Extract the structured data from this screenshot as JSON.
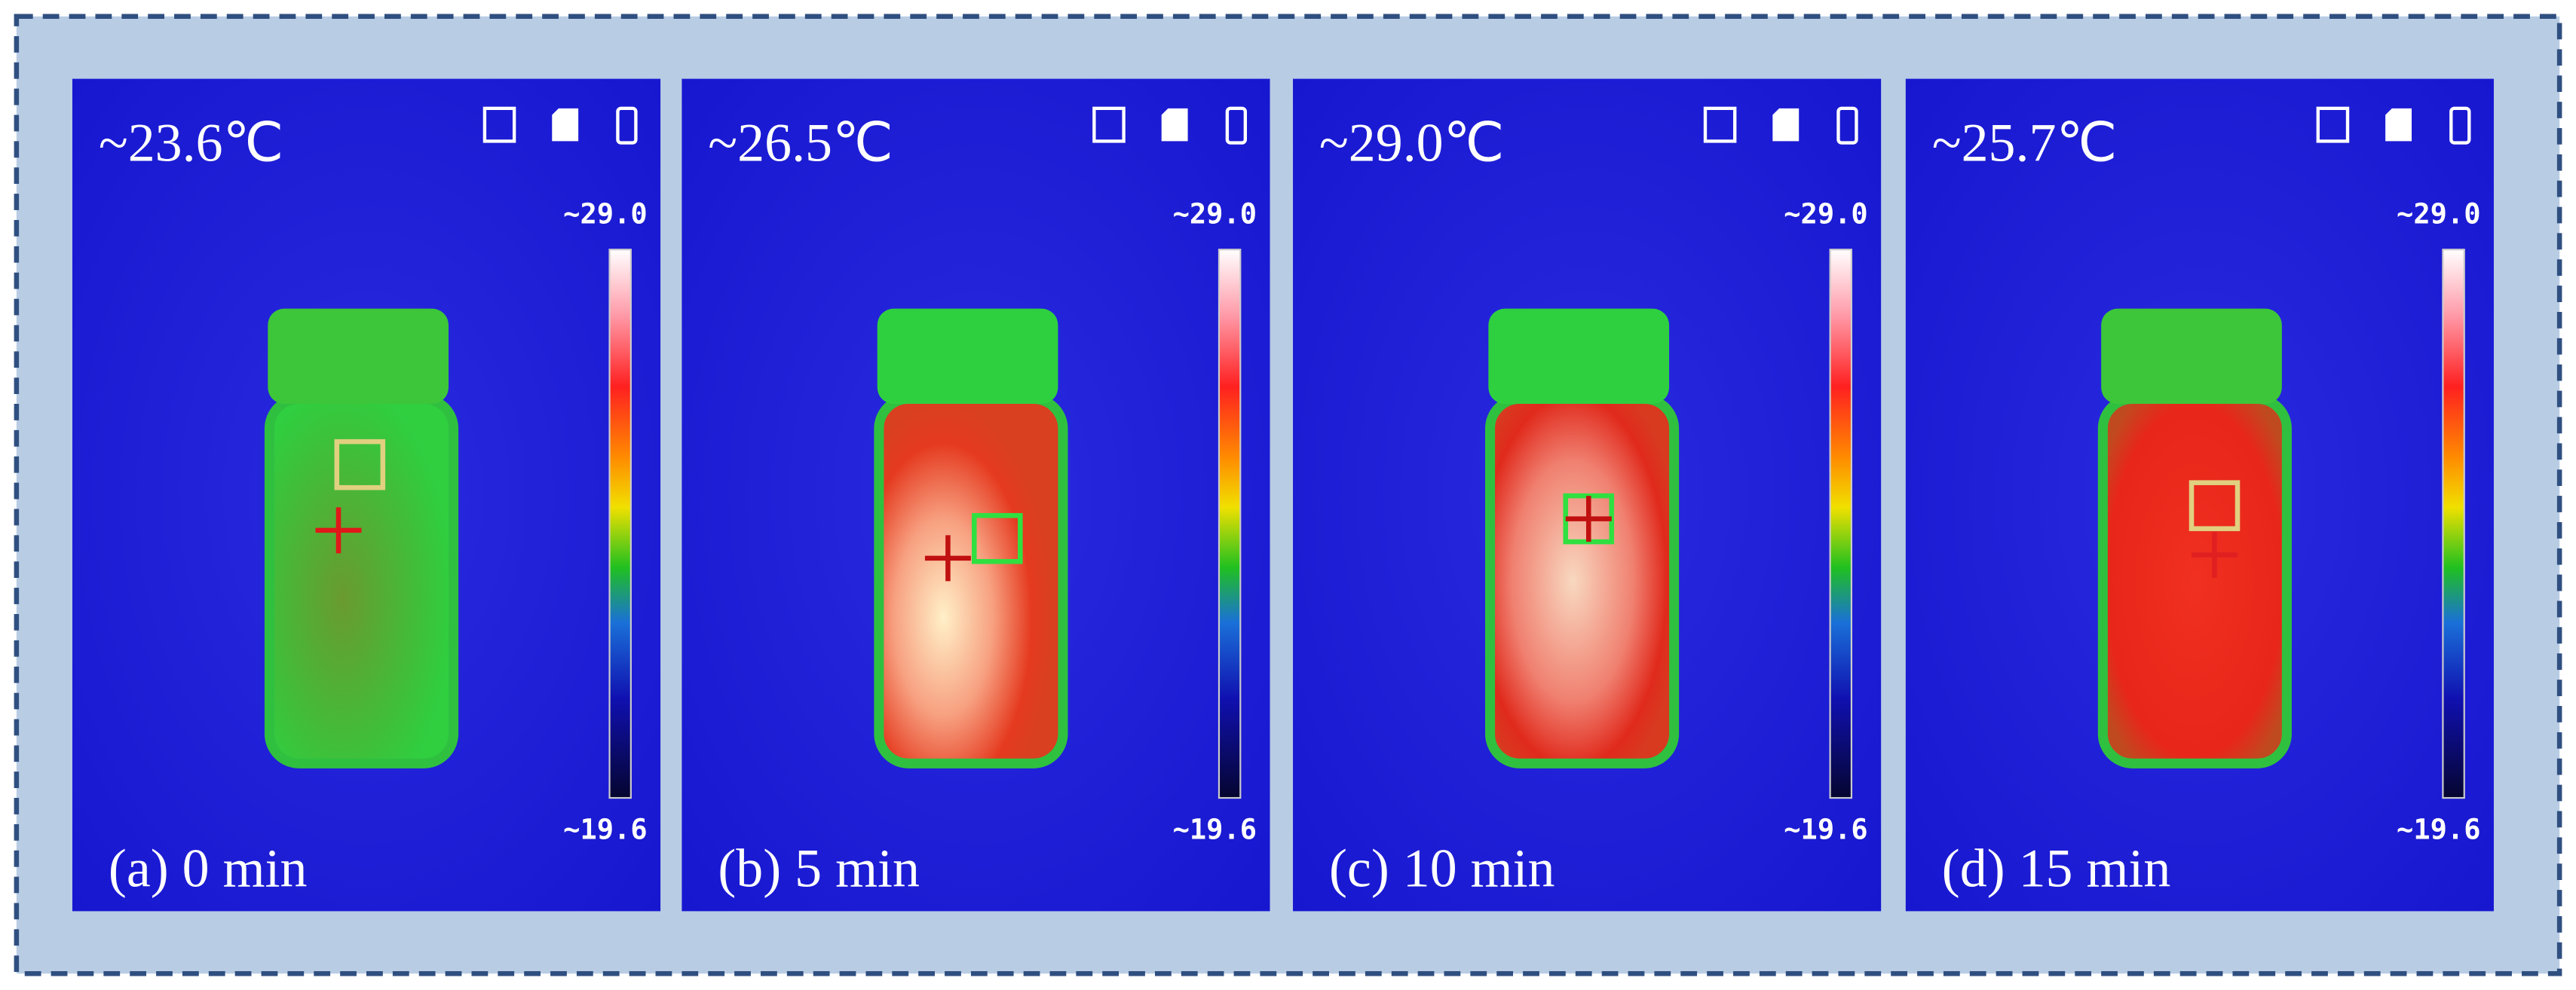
{
  "panels": [
    {
      "temperature": "~23.6℃",
      "caption": "(a) 0 min",
      "scale_max": "~29.0",
      "scale_min": "~19.6"
    },
    {
      "temperature": "~26.5℃",
      "caption": "(b) 5 min",
      "scale_max": "~29.0",
      "scale_min": "~19.6"
    },
    {
      "temperature": "~29.0℃",
      "caption": "(c) 10 min",
      "scale_max": "~29.0",
      "scale_min": "~19.6"
    },
    {
      "temperature": "~25.7℃",
      "caption": "(d) 15 min",
      "scale_max": "~29.0",
      "scale_min": "~19.6"
    }
  ]
}
